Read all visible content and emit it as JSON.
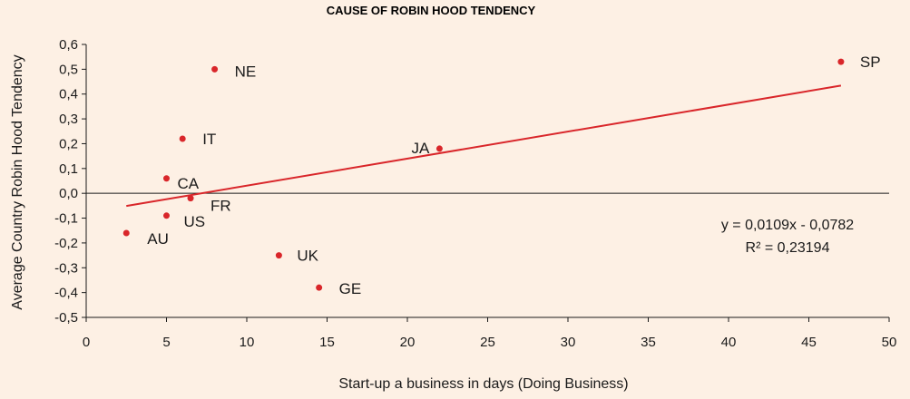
{
  "chart_data": {
    "type": "scatter",
    "title": "CAUSE OF ROBIN HOOD TENDENCY",
    "xlabel": "Start-up a business in days (Doing Business)",
    "ylabel": "Average Country Robin Hood Tendency",
    "xlim": [
      0,
      50
    ],
    "ylim": [
      -0.5,
      0.6
    ],
    "x_ticks": [
      0,
      5,
      10,
      15,
      20,
      25,
      30,
      35,
      40,
      45,
      50
    ],
    "x_tick_labels": [
      "0",
      "5",
      "10",
      "15",
      "20",
      "25",
      "30",
      "35",
      "40",
      "45",
      "50"
    ],
    "y_ticks": [
      0.6,
      0.5,
      0.4,
      0.3,
      0.2,
      0.1,
      0.0,
      -0.1,
      -0.2,
      -0.3,
      -0.4,
      -0.5
    ],
    "y_tick_labels": [
      "0,6",
      "0,5",
      "0,4",
      "0,3",
      "0,2",
      "0,1",
      "0,0",
      "-0,1",
      "-0,2",
      "-0,3",
      "-0,4",
      "-0,5"
    ],
    "grid": false,
    "zero_line": true,
    "points": [
      {
        "label": "NE",
        "x": 8,
        "y": 0.5
      },
      {
        "label": "IT",
        "x": 6,
        "y": 0.22
      },
      {
        "label": "CA",
        "x": 5,
        "y": 0.06
      },
      {
        "label": "FR",
        "x": 6.5,
        "y": -0.02
      },
      {
        "label": "US",
        "x": 5,
        "y": -0.09
      },
      {
        "label": "AU",
        "x": 2.5,
        "y": -0.16
      },
      {
        "label": "UK",
        "x": 12,
        "y": -0.25
      },
      {
        "label": "GE",
        "x": 14.5,
        "y": -0.38
      },
      {
        "label": "JA",
        "x": 22,
        "y": 0.18
      },
      {
        "label": "SP",
        "x": 47,
        "y": 0.53
      }
    ],
    "trendline": {
      "type": "linear",
      "slope": 0.0109,
      "intercept": -0.0782,
      "x_range": [
        2.5,
        47
      ],
      "equation": "y = 0,0109x - 0,0782",
      "r_squared": "R² = 0,23194"
    },
    "colors": {
      "point": "#d9262a",
      "trendline": "#d9262a",
      "axis": "#1a1a1a",
      "background": "#fdf0e4"
    }
  }
}
